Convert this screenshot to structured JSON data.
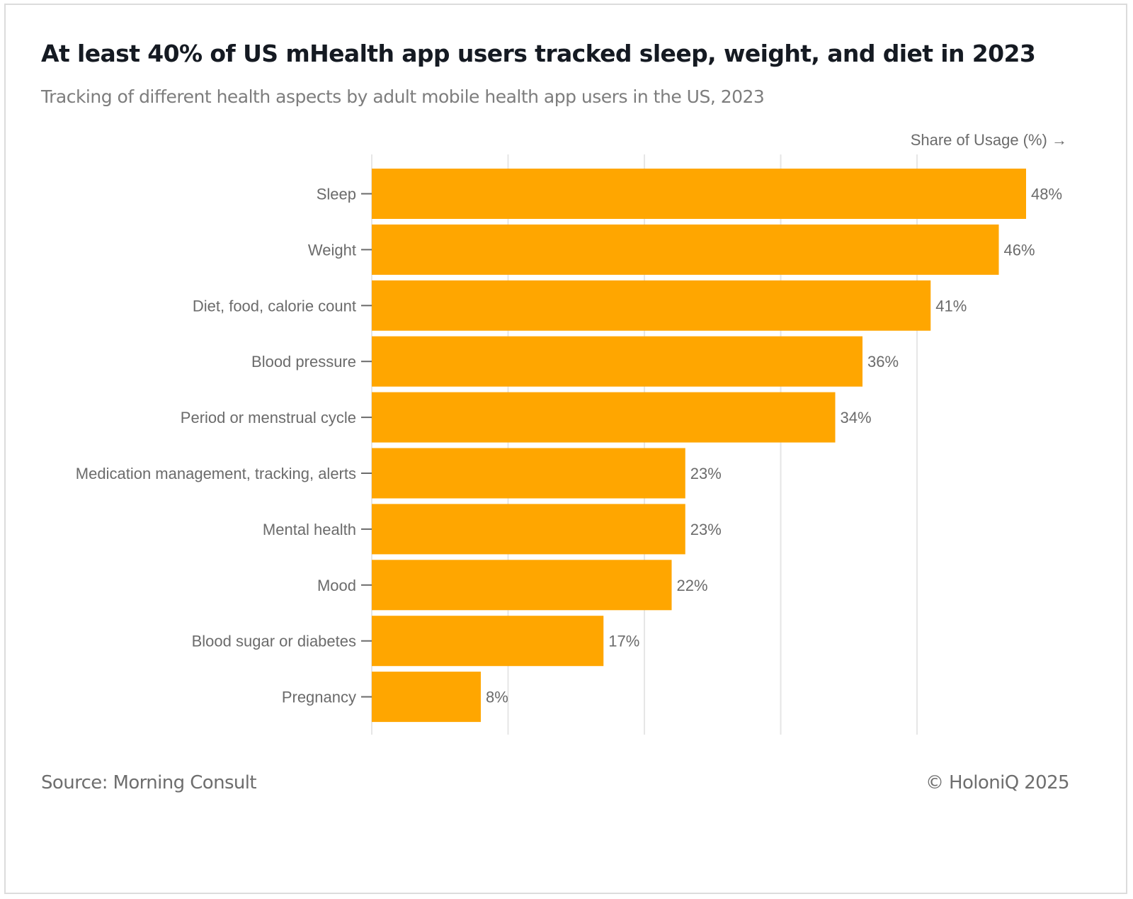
{
  "header": {
    "title": "At least 40% of US mHealth app users tracked sleep, weight, and diet in 2023",
    "subtitle": "Tracking of different health aspects by adult mobile health app users in the US, 2023"
  },
  "footer": {
    "source": "Source: Morning Consult",
    "copyright": "© HoloniQ 2025"
  },
  "colors": {
    "bar": "#FFA600",
    "grid": "#e6e6e6",
    "text": "#6b6b6b"
  },
  "chart_data": {
    "type": "bar",
    "orientation": "horizontal",
    "title": "At least 40% of US mHealth app users tracked sleep, weight, and diet in 2023",
    "subtitle": "Tracking of different health aspects by adult mobile health app users in the US, 2023",
    "xlabel": "Share of Usage (%) →",
    "ylabel": "",
    "categories": [
      "Sleep",
      "Weight",
      "Diet, food, calorie count",
      "Blood pressure",
      "Period or menstrual cycle",
      "Medication management, tracking, alerts",
      "Mental health",
      "Mood",
      "Blood sugar or diabetes",
      "Pregnancy"
    ],
    "values": [
      48,
      46,
      41,
      36,
      34,
      23,
      23,
      22,
      17,
      8
    ],
    "value_labels": [
      "48%",
      "46%",
      "41%",
      "36%",
      "34%",
      "23%",
      "23%",
      "22%",
      "17%",
      "8%"
    ],
    "xlim": [
      0,
      50
    ],
    "gridlines_x": [
      0,
      10,
      20,
      30,
      40
    ],
    "x_tick_labels_visible": false,
    "grid": true,
    "legend": "none"
  }
}
